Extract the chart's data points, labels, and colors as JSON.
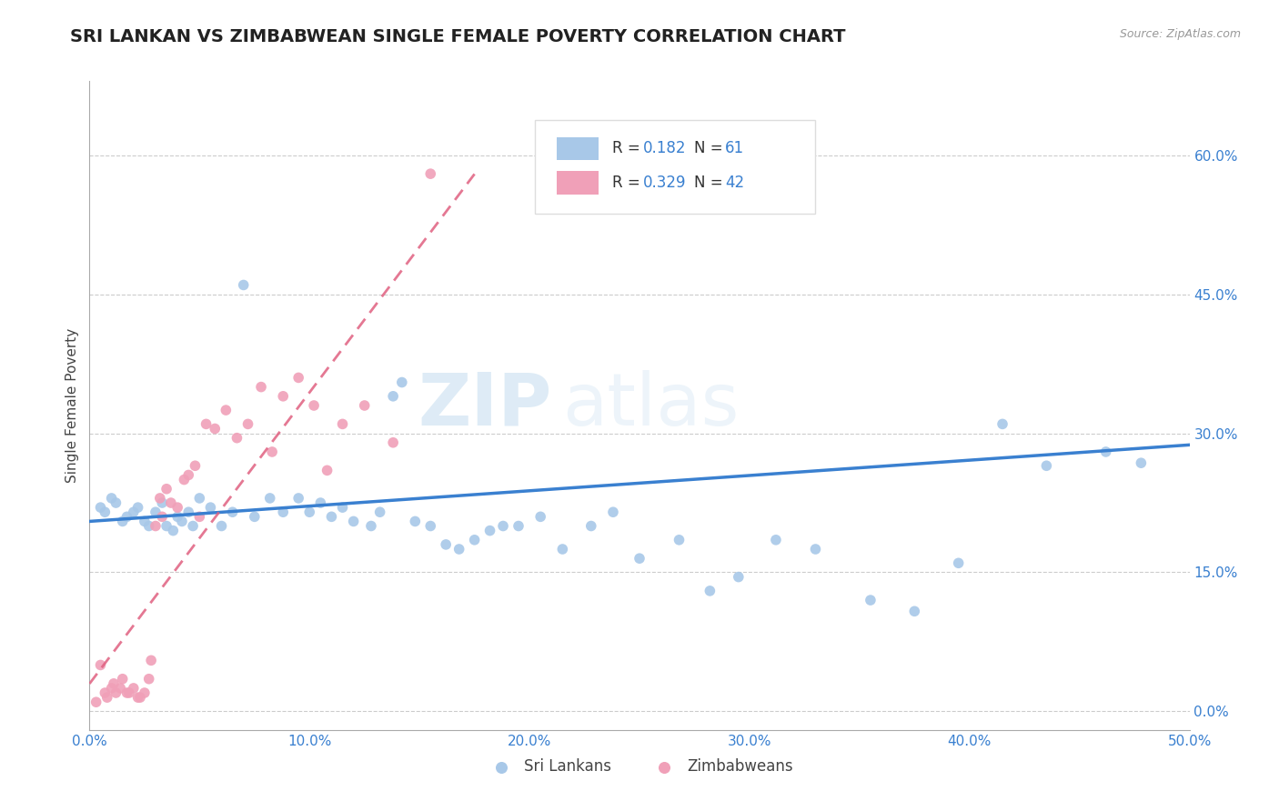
{
  "title": "SRI LANKAN VS ZIMBABWEAN SINGLE FEMALE POVERTY CORRELATION CHART",
  "source_text": "Source: ZipAtlas.com",
  "ylabel": "Single Female Poverty",
  "xlim": [
    0.0,
    0.5
  ],
  "ylim": [
    -0.02,
    0.68
  ],
  "xticks": [
    0.0,
    0.1,
    0.2,
    0.3,
    0.4,
    0.5
  ],
  "xtick_labels": [
    "0.0%",
    "10.0%",
    "20.0%",
    "30.0%",
    "40.0%",
    "50.0%"
  ],
  "yticks": [
    0.0,
    0.15,
    0.3,
    0.45,
    0.6
  ],
  "ytick_labels": [
    "0.0%",
    "15.0%",
    "30.0%",
    "45.0%",
    "60.0%"
  ],
  "sri_lanka_color": "#a8c8e8",
  "zimbabwe_color": "#f0a0b8",
  "sri_lanka_line_color": "#3a80d0",
  "zimbabwe_line_color": "#e06080",
  "legend_R1": "0.182",
  "legend_N1": "61",
  "legend_R2": "0.329",
  "legend_N2": "42",
  "watermark_zip": "ZIP",
  "watermark_atlas": "atlas",
  "sri_lankans_label": "Sri Lankans",
  "zimbabweans_label": "Zimbabweans",
  "sri_lankans_x": [
    0.005,
    0.007,
    0.01,
    0.012,
    0.015,
    0.017,
    0.02,
    0.022,
    0.025,
    0.027,
    0.03,
    0.033,
    0.035,
    0.038,
    0.04,
    0.042,
    0.045,
    0.047,
    0.05,
    0.055,
    0.06,
    0.065,
    0.07,
    0.075,
    0.082,
    0.088,
    0.095,
    0.1,
    0.105,
    0.11,
    0.115,
    0.12,
    0.128,
    0.132,
    0.138,
    0.142,
    0.148,
    0.155,
    0.162,
    0.168,
    0.175,
    0.182,
    0.188,
    0.195,
    0.205,
    0.215,
    0.228,
    0.238,
    0.25,
    0.268,
    0.282,
    0.295,
    0.312,
    0.33,
    0.355,
    0.375,
    0.395,
    0.415,
    0.435,
    0.462,
    0.478
  ],
  "sri_lankans_y": [
    0.22,
    0.215,
    0.23,
    0.225,
    0.205,
    0.21,
    0.215,
    0.22,
    0.205,
    0.2,
    0.215,
    0.225,
    0.2,
    0.195,
    0.21,
    0.205,
    0.215,
    0.2,
    0.23,
    0.22,
    0.2,
    0.215,
    0.46,
    0.21,
    0.23,
    0.215,
    0.23,
    0.215,
    0.225,
    0.21,
    0.22,
    0.205,
    0.2,
    0.215,
    0.34,
    0.355,
    0.205,
    0.2,
    0.18,
    0.175,
    0.185,
    0.195,
    0.2,
    0.2,
    0.21,
    0.175,
    0.2,
    0.215,
    0.165,
    0.185,
    0.13,
    0.145,
    0.185,
    0.175,
    0.12,
    0.108,
    0.16,
    0.31,
    0.265,
    0.28,
    0.268
  ],
  "zimbabweans_x": [
    0.003,
    0.005,
    0.007,
    0.008,
    0.01,
    0.011,
    0.012,
    0.014,
    0.015,
    0.017,
    0.018,
    0.02,
    0.022,
    0.023,
    0.025,
    0.027,
    0.028,
    0.03,
    0.032,
    0.033,
    0.035,
    0.037,
    0.04,
    0.043,
    0.045,
    0.048,
    0.05,
    0.053,
    0.057,
    0.062,
    0.067,
    0.072,
    0.078,
    0.083,
    0.088,
    0.095,
    0.102,
    0.108,
    0.115,
    0.125,
    0.138,
    0.155
  ],
  "zimbabweans_y": [
    0.01,
    0.05,
    0.02,
    0.015,
    0.025,
    0.03,
    0.02,
    0.025,
    0.035,
    0.02,
    0.02,
    0.025,
    0.015,
    0.015,
    0.02,
    0.035,
    0.055,
    0.2,
    0.23,
    0.21,
    0.24,
    0.225,
    0.22,
    0.25,
    0.255,
    0.265,
    0.21,
    0.31,
    0.305,
    0.325,
    0.295,
    0.31,
    0.35,
    0.28,
    0.34,
    0.36,
    0.33,
    0.26,
    0.31,
    0.33,
    0.29,
    0.58
  ]
}
